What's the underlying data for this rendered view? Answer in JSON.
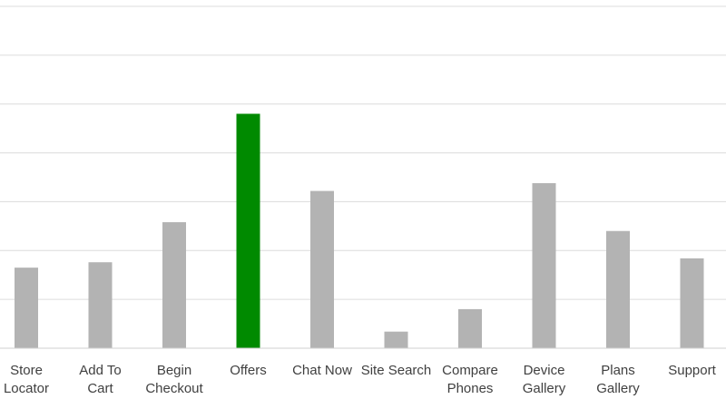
{
  "chart_data": {
    "type": "bar",
    "categories": [
      "Store Locator",
      "Add To Cart",
      "Begin Checkout",
      "Offers",
      "Chat Now",
      "Site Search",
      "Compare Phones",
      "Device Gallery",
      "Plans Gallery",
      "Support"
    ],
    "category_label_lines": [
      [
        "Store",
        "Locator"
      ],
      [
        "Add To",
        "Cart"
      ],
      [
        "Begin",
        "Checkout"
      ],
      [
        "Offers"
      ],
      [
        "Chat Now"
      ],
      [
        "Site Search"
      ],
      [
        "Compare",
        "Phones"
      ],
      [
        "Device",
        "Gallery"
      ],
      [
        "Plans",
        "Gallery"
      ],
      [
        "Support"
      ]
    ],
    "values": [
      1.65,
      1.76,
      2.58,
      4.8,
      3.22,
      0.34,
      0.8,
      3.38,
      2.4,
      1.84
    ],
    "ylim": [
      0,
      7
    ],
    "grid": true,
    "legend": "none",
    "highlight_index": 3,
    "colors": {
      "default_bar": "#b3b3b3",
      "highlight_bar": "#008a00",
      "gridline": "#dcdcdc",
      "label": "#404040"
    },
    "title": "",
    "xlabel": "",
    "ylabel": ""
  }
}
